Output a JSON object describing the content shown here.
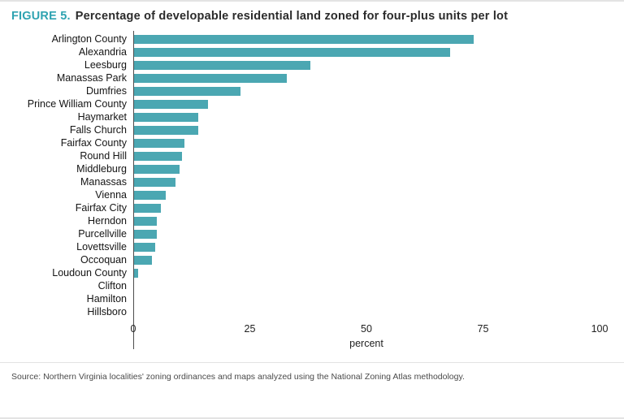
{
  "title": {
    "prefix": "FIGURE 5.",
    "text": "Percentage of developable residential land zoned for four-plus units per lot"
  },
  "chart_data": {
    "type": "bar",
    "orientation": "horizontal",
    "title": "Percentage of developable residential land zoned for four-plus units per lot",
    "categories": [
      "Arlington County",
      "Alexandria",
      "Leesburg",
      "Manassas Park",
      "Dumfries",
      "Prince William County",
      "Haymarket",
      "Falls Church",
      "Fairfax County",
      "Round Hill",
      "Middleburg",
      "Manassas",
      "Vienna",
      "Fairfax City",
      "Herndon",
      "Purcellville",
      "Lovettsville",
      "Occoquan",
      "Loudoun County",
      "Clifton",
      "Hamilton",
      "Hillsboro"
    ],
    "values": [
      73,
      68,
      38,
      33,
      23,
      16,
      14,
      14,
      11,
      10.5,
      10,
      9,
      7,
      6,
      5,
      5,
      4.7,
      4,
      1,
      0,
      0,
      0
    ],
    "xlabel": "percent",
    "x_ticks": [
      0,
      25,
      50,
      75,
      100
    ],
    "xlim": [
      0,
      100
    ],
    "grid": false,
    "legend": "none"
  },
  "colors": {
    "bar": "#4ba7b2",
    "title_accent": "#2fa3b1",
    "axis": "#4d4d4d",
    "rule": "#e3e3e3"
  },
  "source": "Source: Northern Virginia localities' zoning ordinances and maps analyzed using the National Zoning Atlas methodology."
}
